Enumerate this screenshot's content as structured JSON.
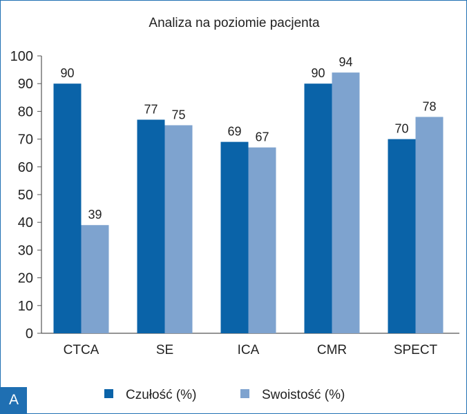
{
  "panel_label": "A",
  "chart_data": {
    "type": "bar",
    "title": "Analiza na poziomie pacjenta",
    "xlabel": "",
    "ylabel": "",
    "categories": [
      "CTCA",
      "SE",
      "ICA",
      "CMR",
      "SPECT"
    ],
    "series": [
      {
        "name": "Czułość (%)",
        "values": [
          90,
          77,
          69,
          90,
          70
        ],
        "color": "#0a63a8"
      },
      {
        "name": "Swoistość (%)",
        "values": [
          39,
          75,
          67,
          94,
          78
        ],
        "color": "#7ea3cf"
      }
    ],
    "ylim": [
      0,
      100
    ],
    "yticks": [
      0,
      10,
      20,
      30,
      40,
      50,
      60,
      70,
      80,
      90,
      100
    ],
    "grid": false,
    "data_labels": true,
    "legend_position": "bottom"
  }
}
